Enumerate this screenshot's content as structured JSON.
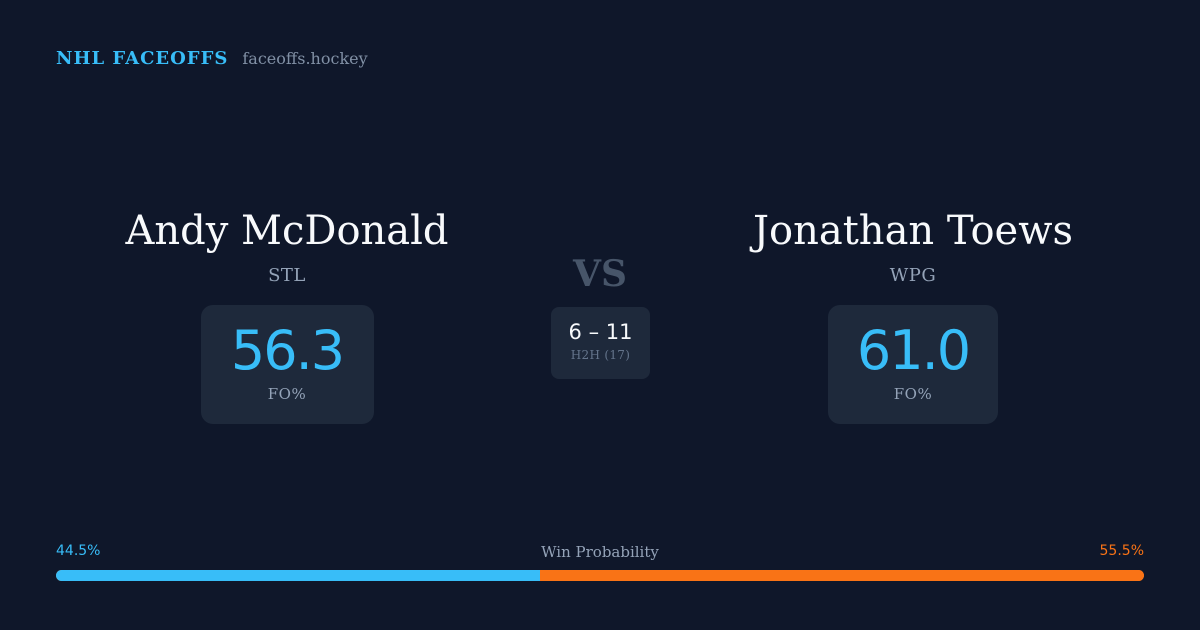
{
  "brand": {
    "title": "NHL FACEOFFS",
    "domain": "faceoffs.hockey",
    "accent_color": "#38bdf8"
  },
  "left_player": {
    "name": "Andy McDonald",
    "team": "STL",
    "fo_pct": "56.3",
    "fo_label": "FO%"
  },
  "vs_label": "VS",
  "head_to_head": {
    "score": "6 – 11",
    "label": "H2H (17)"
  },
  "right_player": {
    "name": "Jonathan Toews",
    "team": "WPG",
    "fo_pct": "61.0",
    "fo_label": "FO%"
  },
  "win_probability": {
    "title": "Win Probability",
    "left_pct_text": "44.5%",
    "right_pct_text": "55.5%",
    "left_fraction": 0.445,
    "right_fraction": 0.555,
    "left_color": "#38bdf8",
    "right_color": "#f97316"
  },
  "colors": {
    "background": "#0f172a",
    "card": "#1e293b"
  }
}
